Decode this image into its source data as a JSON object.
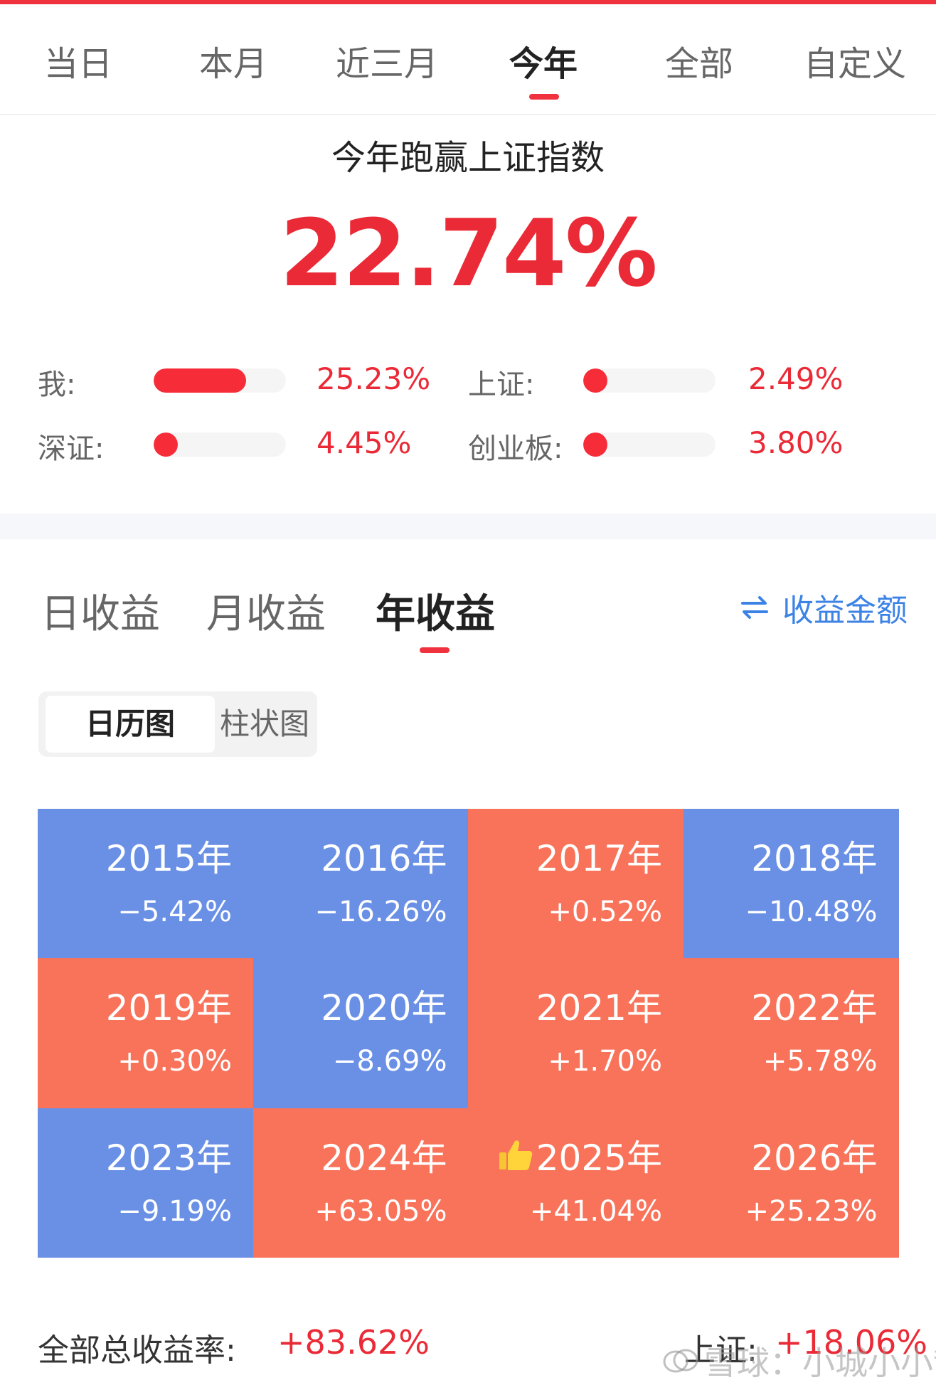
{
  "period_tabs": [
    {
      "label": "当日"
    },
    {
      "label": "本月"
    },
    {
      "label": "近三月"
    },
    {
      "label": "今年",
      "active": true
    },
    {
      "label": "全部"
    },
    {
      "label": "自定义"
    }
  ],
  "summary": {
    "title": "今年跑赢上证指数",
    "value": "22.74%"
  },
  "comparisons": [
    {
      "label": "我:",
      "value": "25.23%",
      "fill_fraction": 0.7
    },
    {
      "label": "上证:",
      "value": "2.49%",
      "fill_fraction": 0.07
    },
    {
      "label": "深证:",
      "value": "4.45%",
      "fill_fraction": 0.12
    },
    {
      "label": "创业板:",
      "value": "3.80%",
      "fill_fraction": 0.1
    }
  ],
  "returns_tabs": [
    {
      "label": "日收益"
    },
    {
      "label": "月收益"
    },
    {
      "label": "年收益",
      "active": true
    }
  ],
  "amount_toggle": {
    "label": "收益金额",
    "icon": "swap-icon"
  },
  "view_segment": {
    "active": "日历图",
    "inactive": "柱状图"
  },
  "years": [
    {
      "year": "2015年",
      "ret": "−5.42%"
    },
    {
      "year": "2016年",
      "ret": "−16.26%"
    },
    {
      "year": "2017年",
      "ret": "+0.52%"
    },
    {
      "year": "2018年",
      "ret": "−10.48%"
    },
    {
      "year": "2019年",
      "ret": "+0.30%"
    },
    {
      "year": "2020年",
      "ret": "−8.69%"
    },
    {
      "year": "2021年",
      "ret": "+1.70%"
    },
    {
      "year": "2022年",
      "ret": "+5.78%"
    },
    {
      "year": "2023年",
      "ret": "−9.19%"
    },
    {
      "year": "2024年",
      "ret": "+63.05%"
    },
    {
      "year": "2025年",
      "ret": "+41.04%",
      "icon": "thumbs-up-icon"
    },
    {
      "year": "2026年",
      "ret": "+25.23%"
    }
  ],
  "footer": {
    "total_label": "全部总收益率:",
    "total_value": "+83.62%",
    "index_label": "上证:",
    "index_value": "+18.06%"
  },
  "watermark": "雪球：小城小小散",
  "colors": {
    "accent_red": "#f0323f",
    "positive": "#f8735a",
    "negative": "#6a90e6",
    "link_blue": "#3d83e6"
  }
}
